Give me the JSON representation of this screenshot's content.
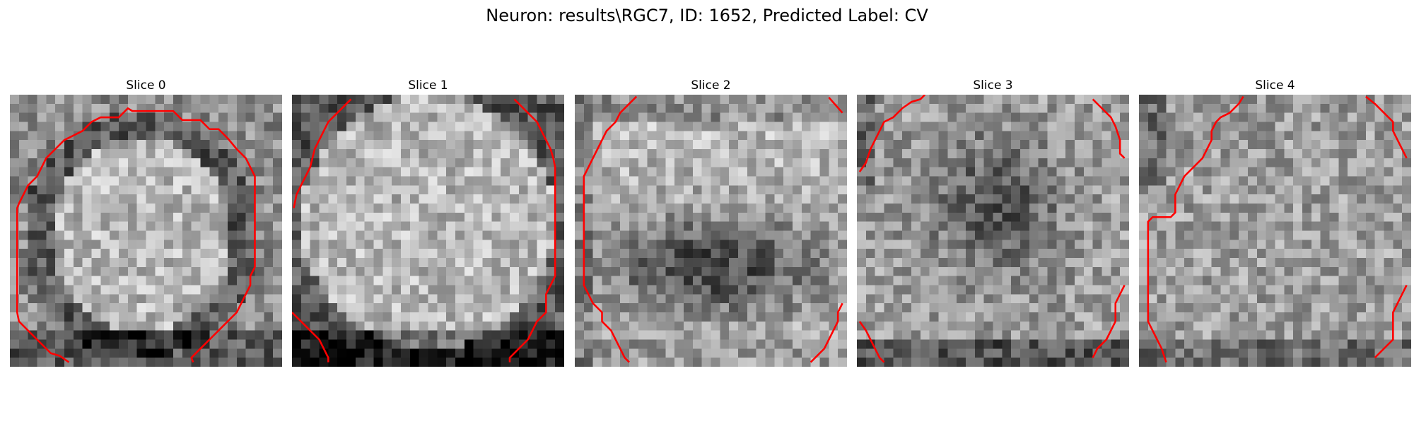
{
  "figure": {
    "title": "Neuron: results\\RGC7, ID: 1652, Predicted Label: CV"
  },
  "slices": [
    {
      "title": "Slice 0",
      "image_description_seed": 11,
      "contour_color": "#ff0000",
      "pattern": "ring"
    },
    {
      "title": "Slice 1",
      "image_description_seed": 23,
      "contour_color": "#ff0000",
      "pattern": "bright"
    },
    {
      "title": "Slice 2",
      "image_description_seed": 37,
      "contour_color": "#ff0000",
      "pattern": "dark-band"
    },
    {
      "title": "Slice 3",
      "image_description_seed": 41,
      "contour_color": "#ff0000",
      "pattern": "dark-center"
    },
    {
      "title": "Slice 4",
      "image_description_seed": 53,
      "contour_color": "#ff0000",
      "pattern": "noise"
    }
  ]
}
